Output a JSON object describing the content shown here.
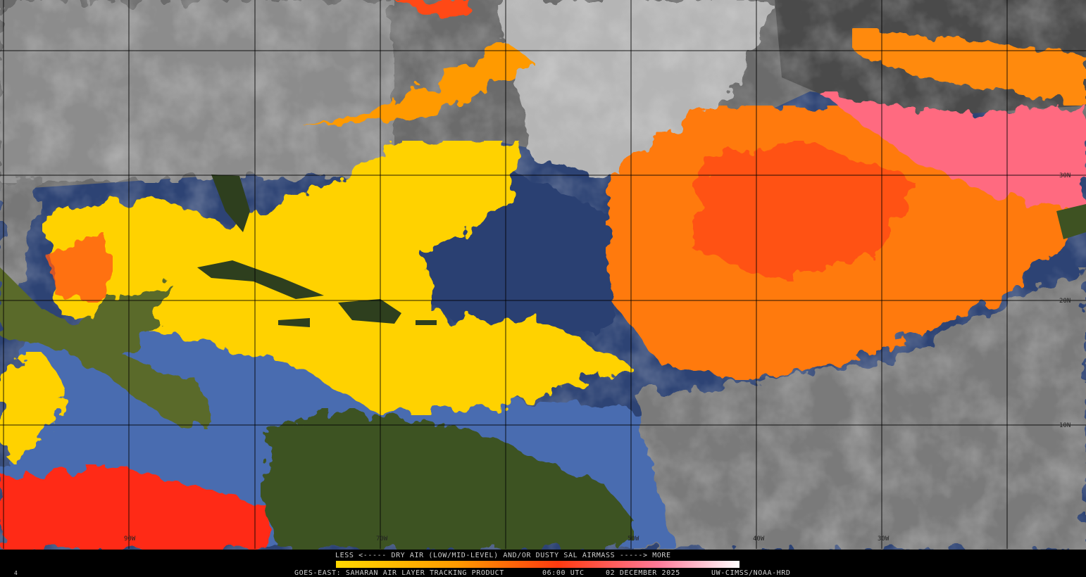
{
  "map": {
    "grid_labels": {
      "latitude": [
        "30N",
        "20N",
        "10N"
      ],
      "longitude": [
        "90W",
        "70W",
        "50W",
        "40W",
        "30W"
      ]
    },
    "legend": {
      "caption": "LESS <----- DRY AIR (LOW/MID-LEVEL) AND/OR DUSTY SAL AIRMASS -----> MORE"
    },
    "footer": {
      "frame": "4",
      "product": "GOES-EAST: SAHARAN AIR LAYER TRACKING PRODUCT",
      "time": "06:00 UTC",
      "date": "02 DECEMBER 2025",
      "credit": "UW-CIMSS/NOAA-HRD"
    }
  }
}
